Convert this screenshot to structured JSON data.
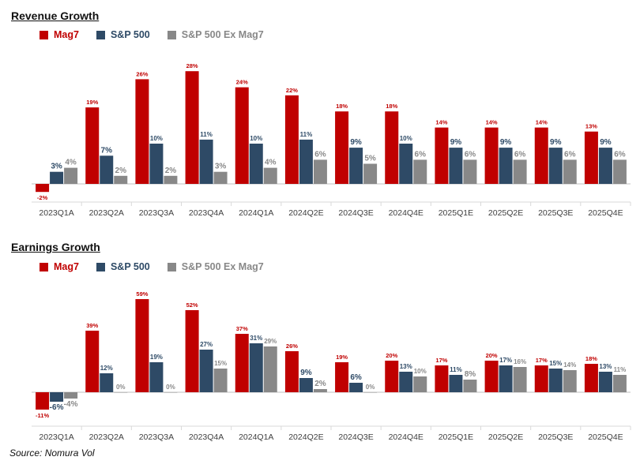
{
  "colors": {
    "mag7": "#c00000",
    "sp500": "#2e4a66",
    "exmag7": "#888888"
  },
  "source": "Source: Nomura Vol",
  "chart_data": [
    {
      "type": "bar",
      "title": "Revenue Growth",
      "legend": "top-left",
      "categories": [
        "2023Q1A",
        "2023Q2A",
        "2023Q3A",
        "2023Q4A",
        "2024Q1A",
        "2024Q2E",
        "2024Q3E",
        "2024Q4E",
        "2025Q1E",
        "2025Q2E",
        "2025Q3E",
        "2025Q4E"
      ],
      "series": [
        {
          "name": "Mag7",
          "values": [
            -2,
            19,
            26,
            28,
            24,
            22,
            18,
            18,
            14,
            14,
            14,
            13
          ],
          "labels": [
            "-2%",
            "19%",
            "26%",
            "28%",
            "24%",
            "22%",
            "18%",
            "18%",
            "14%",
            "14%",
            "14%",
            "13%"
          ]
        },
        {
          "name": "S&P 500",
          "values": [
            3,
            7,
            10,
            11,
            10,
            11,
            9,
            10,
            9,
            9,
            9,
            9
          ],
          "labels": [
            "3%",
            "7%",
            "10%",
            "11%",
            "10%",
            "11%",
            "9%",
            "10%",
            "9%",
            "9%",
            "9%",
            "9%"
          ]
        },
        {
          "name": "S&P 500 Ex Mag7",
          "values": [
            4,
            2,
            2,
            3,
            4,
            6,
            5,
            6,
            6,
            6,
            6,
            6
          ],
          "labels": [
            "4%",
            "2%",
            "2%",
            "3%",
            "4%",
            "6%",
            "5%",
            "6%",
            "6%",
            "6%",
            "6%",
            "6%"
          ]
        }
      ]
    },
    {
      "type": "bar",
      "title": "Earnings Growth",
      "legend": "top-left",
      "categories": [
        "2023Q1A",
        "2023Q2A",
        "2023Q3A",
        "2023Q4A",
        "2024Q1A",
        "2024Q2E",
        "2024Q3E",
        "2024Q4E",
        "2025Q1E",
        "2025Q2E",
        "2025Q3E",
        "2025Q4E"
      ],
      "series": [
        {
          "name": "Mag7",
          "values": [
            -11,
            39,
            59,
            52,
            37,
            26,
            19,
            20,
            17,
            20,
            17,
            18
          ],
          "labels": [
            "-11%",
            "39%",
            "59%",
            "52%",
            "37%",
            "26%",
            "19%",
            "20%",
            "17%",
            "20%",
            "17%",
            "18%"
          ]
        },
        {
          "name": "S&P 500",
          "values": [
            -6,
            12,
            19,
            27,
            31,
            9,
            6,
            13,
            11,
            17,
            15,
            13
          ],
          "labels": [
            "-6%",
            "12%",
            "19%",
            "27%",
            "31%",
            "9%",
            "6%",
            "13%",
            "11%",
            "17%",
            "15%",
            "13%"
          ]
        },
        {
          "name": "S&P 500 Ex Mag7",
          "values": [
            -4,
            0,
            0,
            15,
            29,
            2,
            0,
            10,
            8,
            16,
            14,
            11
          ],
          "labels": [
            "-4%",
            "0%",
            "0%",
            "15%",
            "29%",
            "2%",
            "0%",
            "10%",
            "8%",
            "16%",
            "14%",
            "11%"
          ]
        }
      ]
    }
  ]
}
